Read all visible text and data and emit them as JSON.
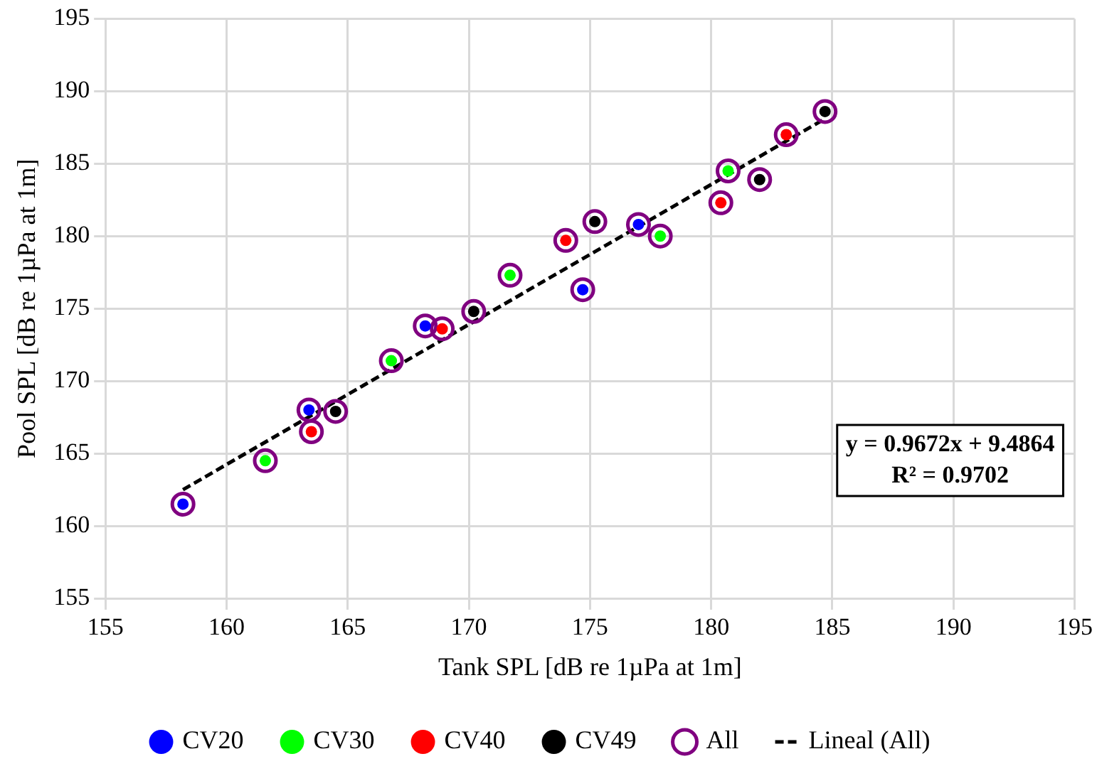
{
  "chart_data": {
    "type": "scatter",
    "xlabel": "Tank SPL [dB re 1µPa at 1m]",
    "ylabel": "Pool SPL [dB re 1µPa at 1m]",
    "xlim": [
      155,
      195
    ],
    "xticks": [
      155,
      160,
      165,
      170,
      175,
      180,
      185,
      190,
      195
    ],
    "ylim": [
      155,
      195
    ],
    "yticks": [
      155,
      160,
      165,
      170,
      175,
      180,
      185,
      190,
      195
    ],
    "grid": true,
    "legend": "bottom",
    "marker": "circle",
    "annotations": [
      "y = 0.9672x + 9.4864",
      "R² = 0.9702"
    ],
    "series": [
      {
        "name": "CV20",
        "color": "#0000ff",
        "x": [
          158.2,
          163.4,
          168.2,
          174.7,
          177.0
        ],
        "values": [
          161.5,
          168.0,
          173.8,
          176.3,
          180.8
        ]
      },
      {
        "name": "CV30",
        "color": "#00ff00",
        "x": [
          161.6,
          166.8,
          171.7,
          177.9,
          180.7
        ],
        "values": [
          164.5,
          171.4,
          177.3,
          180.0,
          184.5
        ]
      },
      {
        "name": "CV40",
        "color": "#ff0000",
        "x": [
          163.5,
          168.9,
          174.0,
          180.4,
          183.1
        ],
        "values": [
          166.5,
          173.6,
          179.7,
          182.3,
          187.0
        ]
      },
      {
        "name": "CV49",
        "color": "#000000",
        "x": [
          164.5,
          170.2,
          175.2,
          182.0,
          184.7
        ],
        "values": [
          167.9,
          174.8,
          181.0,
          183.9,
          188.6
        ]
      },
      {
        "name": "All",
        "color": "#800080",
        "x": [
          158.2,
          163.4,
          168.2,
          174.7,
          177.0,
          161.6,
          166.8,
          171.7,
          177.9,
          180.7,
          163.5,
          168.9,
          174.0,
          180.4,
          183.1,
          164.5,
          170.2,
          175.2,
          182.0,
          184.7
        ],
        "values": [
          161.5,
          168.0,
          173.8,
          176.3,
          180.8,
          164.5,
          171.4,
          177.3,
          180.0,
          184.5,
          166.5,
          173.6,
          179.7,
          182.3,
          187.0,
          167.9,
          174.8,
          181.0,
          183.9,
          188.6
        ]
      },
      {
        "name": "Lineal (All)",
        "type": "line",
        "color": "#000000",
        "line_style": "dashed",
        "marker": "none",
        "x": [
          158.2,
          184.7
        ],
        "values": [
          162.5,
          188.1
        ]
      }
    ]
  }
}
